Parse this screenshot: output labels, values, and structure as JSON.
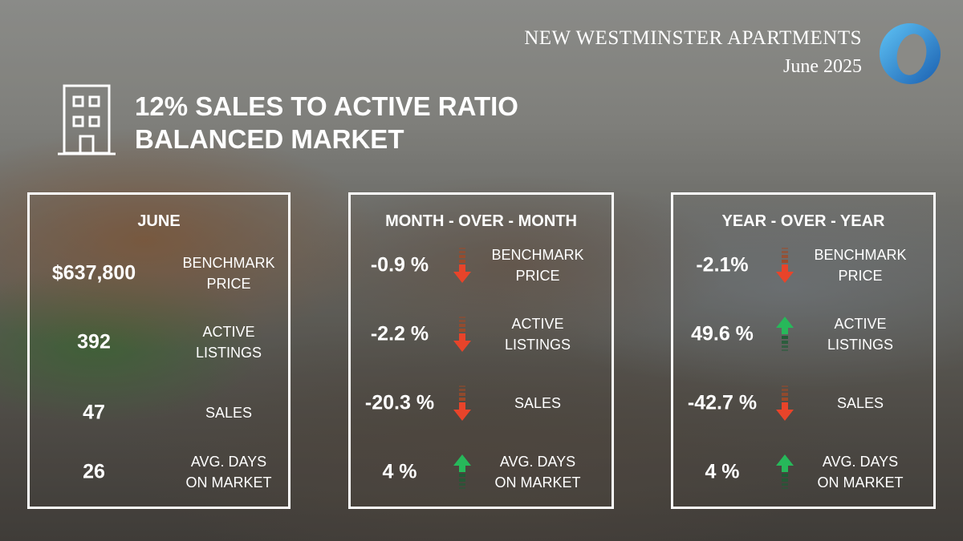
{
  "header": {
    "title": "NEW WESTMINSTER APARTMENTS",
    "date": "June 2025",
    "logo_color": "#2b8ad6"
  },
  "headline": {
    "line1": "12% SALES TO ACTIVE RATIO",
    "line2": "BALANCED MARKET"
  },
  "colors": {
    "down": "#e8442a",
    "down_fade": "#a04a28",
    "up": "#27b85a",
    "up_fade": "#1f5c35"
  },
  "panels": {
    "june": {
      "title": "JUNE",
      "rows": [
        {
          "value": "$637,800",
          "label1": "BENCHMARK",
          "label2": "PRICE"
        },
        {
          "value": "392",
          "label1": "ACTIVE",
          "label2": "LISTINGS"
        },
        {
          "value": "47",
          "label1": "SALES",
          "label2": ""
        },
        {
          "value": "26",
          "label1": "AVG. DAYS",
          "label2": "ON MARKET"
        }
      ]
    },
    "mom": {
      "title": "MONTH - OVER - MONTH",
      "rows": [
        {
          "value": "-0.9 %",
          "direction": "down",
          "label1": "BENCHMARK",
          "label2": "PRICE"
        },
        {
          "value": "-2.2 %",
          "direction": "down",
          "label1": "ACTIVE",
          "label2": "LISTINGS"
        },
        {
          "value": "-20.3 %",
          "direction": "down",
          "label1": "SALES",
          "label2": ""
        },
        {
          "value": "4 %",
          "direction": "up",
          "label1": "AVG. DAYS",
          "label2": "ON MARKET"
        }
      ]
    },
    "yoy": {
      "title": "YEAR - OVER - YEAR",
      "rows": [
        {
          "value": "-2.1%",
          "direction": "down",
          "label1": "BENCHMARK",
          "label2": "PRICE"
        },
        {
          "value": "49.6 %",
          "direction": "up",
          "label1": "ACTIVE",
          "label2": "LISTINGS"
        },
        {
          "value": "-42.7 %",
          "direction": "down",
          "label1": "SALES",
          "label2": ""
        },
        {
          "value": "4 %",
          "direction": "up",
          "label1": "AVG. DAYS",
          "label2": "ON MARKET"
        }
      ]
    }
  }
}
